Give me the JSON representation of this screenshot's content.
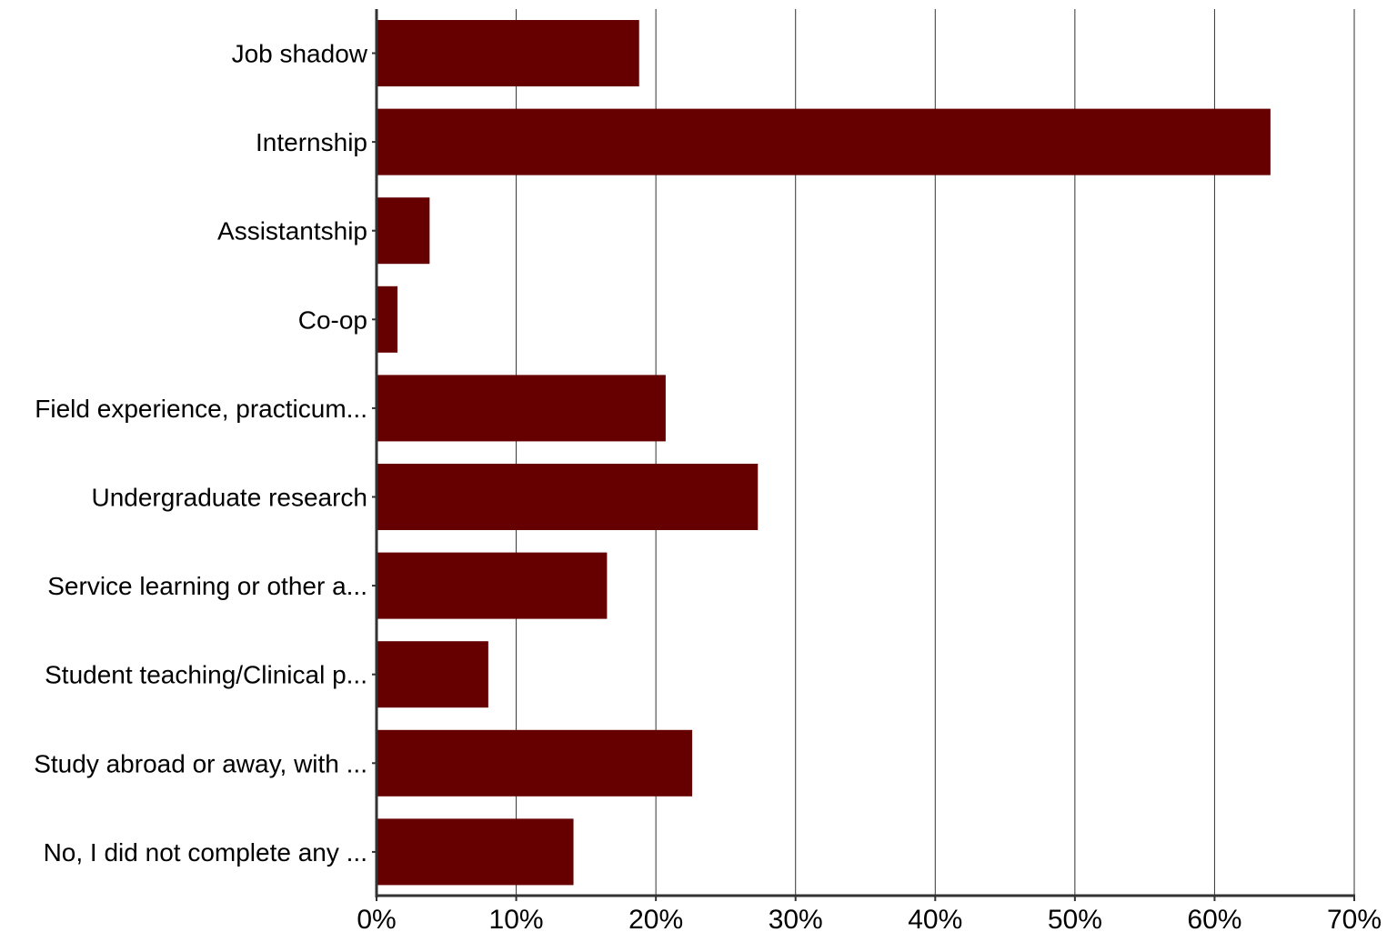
{
  "chart_data": {
    "type": "bar",
    "orientation": "horizontal",
    "categories": [
      "Job shadow",
      "Internship",
      "Assistantship",
      "Co-op",
      "Field experience, practicum...",
      "Undergraduate research",
      "Service learning or other a...",
      "Student teaching/Clinical p...",
      "Study abroad or away, with ...",
      "No, I did not complete any ..."
    ],
    "values": [
      18.8,
      64.0,
      3.8,
      1.5,
      20.7,
      27.3,
      16.5,
      8.0,
      22.6,
      14.1
    ],
    "unit": "%",
    "xlim": [
      0,
      70
    ],
    "xticks": [
      0,
      10,
      20,
      30,
      40,
      50,
      60,
      70
    ],
    "xtick_labels": [
      "0%",
      "10%",
      "20%",
      "30%",
      "40%",
      "50%",
      "60%",
      "70%"
    ],
    "title": "",
    "xlabel": "",
    "ylabel": "",
    "grid": true,
    "legend": "none",
    "bar_color": "#660000"
  }
}
